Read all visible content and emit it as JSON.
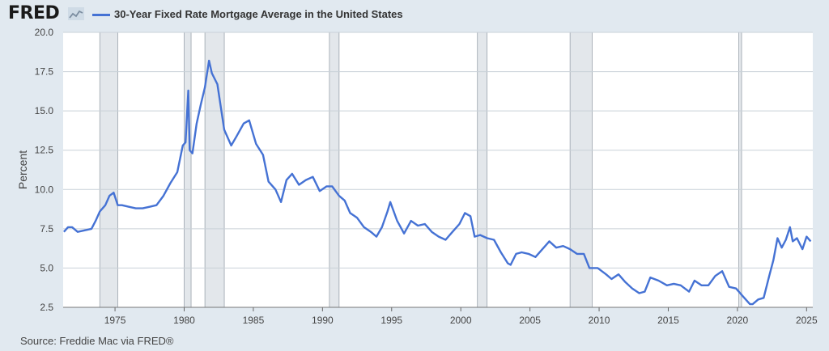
{
  "header": {
    "logo_text": "FRED",
    "legend_label": "30-Year Fixed Rate Mortgage Average in the United States",
    "line_color": "#4572d4"
  },
  "source": "Source: Freddie Mac via FRED®",
  "chart_data": {
    "type": "line",
    "title": "30-Year Fixed Rate Mortgage Average in the United States",
    "ylabel": "Percent",
    "xlabel": "",
    "xlim": [
      1971.25,
      2025.45
    ],
    "ylim": [
      2.5,
      20.0
    ],
    "yticks": [
      2.5,
      5.0,
      7.5,
      10.0,
      12.5,
      15.0,
      17.5,
      20.0
    ],
    "ytick_labels": [
      "2.5",
      "5.0",
      "7.5",
      "10.0",
      "12.5",
      "15.0",
      "17.5",
      "20.0"
    ],
    "xticks": [
      1975,
      1980,
      1985,
      1990,
      1995,
      2000,
      2005,
      2010,
      2015,
      2020,
      2025
    ],
    "xtick_labels": [
      "1975",
      "1980",
      "1985",
      "1990",
      "1995",
      "2000",
      "2005",
      "2010",
      "2015",
      "2020",
      "2025"
    ],
    "grid": true,
    "recessions": [
      [
        1973.9,
        1975.2
      ],
      [
        1980.0,
        1980.5
      ],
      [
        1981.5,
        1982.9
      ],
      [
        1990.5,
        1991.2
      ],
      [
        2001.2,
        2001.9
      ],
      [
        2007.9,
        2009.5
      ],
      [
        2020.1,
        2020.3
      ]
    ],
    "series": [
      {
        "name": "30-Year Fixed Rate Mortgage Average in the United States",
        "x": [
          1971.3,
          1971.6,
          1971.9,
          1972.3,
          1972.8,
          1973.3,
          1973.6,
          1973.9,
          1974.3,
          1974.6,
          1974.9,
          1975.2,
          1975.5,
          1976.0,
          1976.5,
          1977.0,
          1977.5,
          1978.0,
          1978.5,
          1979.0,
          1979.5,
          1979.9,
          1980.1,
          1980.3,
          1980.4,
          1980.6,
          1980.9,
          1981.2,
          1981.5,
          1981.8,
          1982.0,
          1982.4,
          1982.9,
          1983.4,
          1983.8,
          1984.3,
          1984.7,
          1985.2,
          1985.7,
          1986.1,
          1986.6,
          1987.0,
          1987.4,
          1987.8,
          1988.3,
          1988.8,
          1989.3,
          1989.8,
          1990.3,
          1990.7,
          1991.2,
          1991.6,
          1992.0,
          1992.5,
          1993.0,
          1993.5,
          1993.9,
          1994.3,
          1994.7,
          1994.9,
          1995.4,
          1995.9,
          1996.4,
          1996.9,
          1997.4,
          1997.9,
          1998.4,
          1998.9,
          1999.4,
          1999.9,
          2000.3,
          2000.7,
          2001.0,
          2001.4,
          2001.9,
          2002.4,
          2002.9,
          2003.4,
          2003.6,
          2004.0,
          2004.4,
          2004.9,
          2005.4,
          2005.9,
          2006.4,
          2006.9,
          2007.4,
          2007.9,
          2008.4,
          2008.9,
          2009.3,
          2009.9,
          2010.5,
          2010.9,
          2011.4,
          2011.9,
          2012.4,
          2012.9,
          2013.3,
          2013.7,
          2014.3,
          2014.9,
          2015.4,
          2015.9,
          2016.5,
          2016.9,
          2017.4,
          2017.9,
          2018.4,
          2018.9,
          2019.4,
          2019.9,
          2020.4,
          2020.9,
          2021.1,
          2021.5,
          2021.9,
          2022.3,
          2022.6,
          2022.9,
          2023.2,
          2023.5,
          2023.8,
          2024.0,
          2024.3,
          2024.7,
          2025.0,
          2025.3
        ],
        "y": [
          7.3,
          7.6,
          7.6,
          7.3,
          7.4,
          7.5,
          8.0,
          8.6,
          9.0,
          9.6,
          9.8,
          9.0,
          9.0,
          8.9,
          8.8,
          8.8,
          8.9,
          9.0,
          9.6,
          10.4,
          11.1,
          12.8,
          13.0,
          16.3,
          12.5,
          12.3,
          14.2,
          15.4,
          16.5,
          18.2,
          17.4,
          16.7,
          13.8,
          12.8,
          13.4,
          14.2,
          14.4,
          12.9,
          12.2,
          10.5,
          10.0,
          9.2,
          10.6,
          11.0,
          10.3,
          10.6,
          10.8,
          9.9,
          10.2,
          10.2,
          9.6,
          9.3,
          8.5,
          8.2,
          7.6,
          7.3,
          7.0,
          7.6,
          8.6,
          9.2,
          8.0,
          7.2,
          8.0,
          7.7,
          7.8,
          7.3,
          7.0,
          6.8,
          7.3,
          7.8,
          8.5,
          8.3,
          7.0,
          7.1,
          6.9,
          6.8,
          6.0,
          5.3,
          5.2,
          5.9,
          6.0,
          5.9,
          5.7,
          6.2,
          6.7,
          6.3,
          6.4,
          6.2,
          5.9,
          5.9,
          5.0,
          5.0,
          4.6,
          4.3,
          4.6,
          4.1,
          3.7,
          3.4,
          3.5,
          4.4,
          4.2,
          3.9,
          4.0,
          3.9,
          3.5,
          4.2,
          3.9,
          3.9,
          4.5,
          4.8,
          3.8,
          3.7,
          3.2,
          2.7,
          2.7,
          3.0,
          3.1,
          4.5,
          5.5,
          6.9,
          6.3,
          6.8,
          7.6,
          6.7,
          6.9,
          6.2,
          7.0,
          6.7
        ]
      }
    ]
  }
}
